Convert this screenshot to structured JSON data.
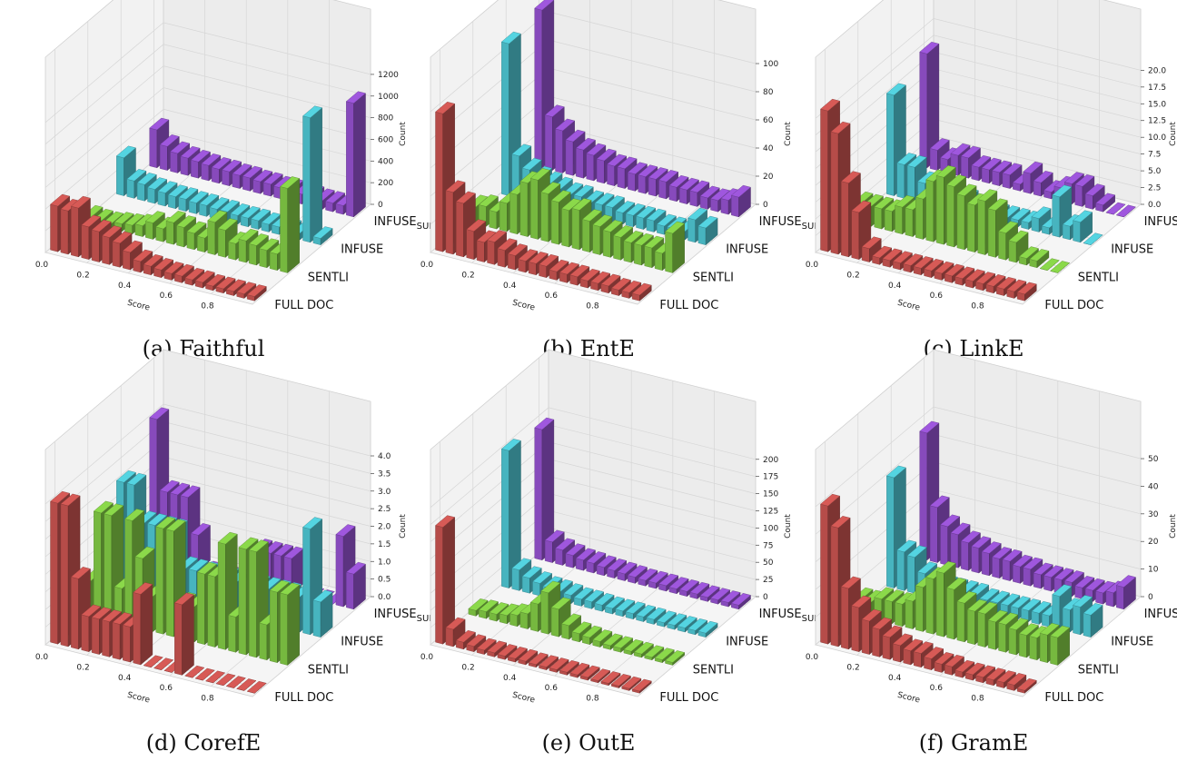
{
  "colors": {
    "full_doc": "#c0504d",
    "sentli": "#7cc242",
    "infuse": "#4bbdc9",
    "infuse_sub": "#8e4ec6",
    "grid": "#d6d6d6",
    "pane": "#f2f2f2"
  },
  "shared": {
    "xlabel": "Score",
    "zlabel": "Count",
    "x_ticks": [
      "0.0",
      "0.2",
      "0.4",
      "0.6",
      "0.8"
    ],
    "categories": [
      "FULL DOC",
      "SENTLI",
      "INFUSE",
      "INFUSE_SUB"
    ]
  },
  "chart_data": [
    {
      "type": "bar3d",
      "caption": "(a) Faithful",
      "zlim": [
        0,
        1300
      ],
      "z_ticks": [
        "0",
        "200",
        "400",
        "600",
        "800",
        "1000",
        "1200"
      ],
      "series": [
        {
          "name": "FULL DOC",
          "values": [
            420,
            400,
            450,
            300,
            280,
            250,
            220,
            160,
            100,
            80,
            70,
            60,
            60,
            50,
            50,
            40,
            40,
            40,
            40,
            40
          ]
        },
        {
          "name": "SENTLI",
          "values": [
            60,
            50,
            50,
            70,
            80,
            100,
            150,
            120,
            200,
            180,
            150,
            130,
            300,
            250,
            150,
            200,
            180,
            160,
            150,
            780
          ]
        },
        {
          "name": "INFUSE",
          "values": [
            350,
            160,
            150,
            130,
            120,
            110,
            110,
            100,
            100,
            90,
            90,
            80,
            80,
            80,
            70,
            70,
            60,
            60,
            1150,
            60
          ]
        },
        {
          "name": "INFUSE_SUB",
          "values": [
            350,
            220,
            180,
            160,
            150,
            140,
            130,
            130,
            120,
            120,
            110,
            110,
            100,
            100,
            90,
            90,
            80,
            80,
            80,
            1050
          ]
        }
      ]
    },
    {
      "type": "bar3d",
      "caption": "(b) EntE",
      "zlim": [
        0,
        100
      ],
      "z_ticks": [
        "0",
        "20",
        "40",
        "60",
        "80",
        "100"
      ],
      "series": [
        {
          "name": "FULL DOC",
          "values": [
            98,
            44,
            38,
            20,
            14,
            16,
            12,
            10,
            8,
            8,
            8,
            6,
            6,
            6,
            5,
            5,
            5,
            4,
            4,
            4
          ]
        },
        {
          "name": "SENTLI",
          "values": [
            12,
            14,
            12,
            20,
            28,
            38,
            42,
            34,
            30,
            26,
            28,
            22,
            20,
            18,
            16,
            14,
            14,
            14,
            12,
            28
          ]
        },
        {
          "name": "INFUSE",
          "values": [
            108,
            30,
            22,
            18,
            16,
            14,
            12,
            12,
            10,
            10,
            10,
            8,
            8,
            8,
            8,
            6,
            6,
            6,
            16,
            12
          ]
        },
        {
          "name": "INFUSE_SUB",
          "values": [
            112,
            38,
            30,
            24,
            20,
            18,
            16,
            14,
            14,
            12,
            12,
            12,
            12,
            10,
            10,
            10,
            8,
            8,
            10,
            14
          ]
        }
      ]
    },
    {
      "type": "bar3d",
      "caption": "(c) LinkE",
      "zlim": [
        0,
        21
      ],
      "z_ticks": [
        "0.0",
        "2.5",
        "5.0",
        "7.5",
        "10.0",
        "12.5",
        "15.0",
        "17.5",
        "20.0"
      ],
      "series": [
        {
          "name": "FULL DOC",
          "values": [
            21,
            18,
            11,
            7,
            2,
            1,
            1,
            1,
            1,
            1,
            1,
            1,
            1,
            1,
            1,
            1,
            1,
            1,
            1,
            1
          ]
        },
        {
          "name": "SENTLI",
          "values": [
            3,
            3,
            3,
            3,
            4,
            4,
            6,
            9,
            10,
            9,
            8,
            7,
            8,
            7,
            4,
            3,
            1,
            1,
            0,
            0
          ]
        },
        {
          "name": "INFUSE",
          "values": [
            15,
            5,
            5,
            3,
            2,
            2,
            2,
            2,
            1,
            1,
            1,
            1,
            1,
            1,
            2,
            1,
            6,
            2,
            3,
            0
          ]
        },
        {
          "name": "INFUSE_SUB",
          "values": [
            17,
            3,
            2,
            3,
            3,
            2,
            2,
            2,
            2,
            1,
            3,
            2,
            1,
            2,
            3,
            3,
            2,
            1,
            0,
            0
          ]
        }
      ]
    },
    {
      "type": "bar3d",
      "caption": "(d) CorefE",
      "zlim": [
        0,
        4
      ],
      "z_ticks": [
        "0.0",
        "0.5",
        "1.0",
        "1.5",
        "2.0",
        "2.5",
        "3.0",
        "3.5",
        "4.0"
      ],
      "series": [
        {
          "name": "FULL DOC",
          "values": [
            4,
            4,
            2,
            1,
            1,
            1,
            1,
            1,
            2,
            0,
            0,
            0,
            2,
            0,
            0,
            0,
            0,
            0,
            0,
            0
          ]
        },
        {
          "name": "SENTLI",
          "values": [
            1,
            3,
            3,
            1,
            3,
            2,
            1,
            3,
            3,
            1,
            1,
            2,
            2,
            3,
            1,
            3,
            3,
            1,
            2,
            2
          ]
        },
        {
          "name": "INFUSE",
          "values": [
            3,
            3,
            2,
            2,
            2,
            2,
            1,
            1,
            1,
            1,
            1,
            1,
            1,
            1,
            1,
            1,
            1,
            1,
            3,
            1
          ]
        },
        {
          "name": "INFUSE_SUB",
          "values": [
            4,
            2,
            2,
            2,
            1,
            0,
            0,
            0,
            0,
            0,
            1,
            1,
            1,
            1,
            0,
            0,
            0,
            0,
            2,
            1
          ]
        }
      ]
    },
    {
      "type": "bar3d",
      "caption": "(e) OutE",
      "zlim": [
        0,
        205
      ],
      "z_ticks": [
        "0",
        "25",
        "50",
        "75",
        "100",
        "125",
        "150",
        "175",
        "200"
      ],
      "series": [
        {
          "name": "FULL DOC",
          "values": [
            170,
            25,
            10,
            8,
            6,
            6,
            5,
            5,
            5,
            4,
            4,
            4,
            4,
            4,
            4,
            3,
            3,
            3,
            3,
            3
          ]
        },
        {
          "name": "SENTLI",
          "values": [
            8,
            10,
            10,
            12,
            16,
            22,
            40,
            60,
            40,
            20,
            12,
            10,
            8,
            6,
            6,
            5,
            5,
            4,
            4,
            4
          ]
        },
        {
          "name": "INFUSE",
          "values": [
            200,
            30,
            22,
            18,
            15,
            14,
            12,
            10,
            10,
            9,
            8,
            8,
            8,
            7,
            7,
            6,
            6,
            6,
            6,
            6
          ]
        },
        {
          "name": "INFUSE_SUB",
          "values": [
            190,
            30,
            22,
            18,
            15,
            14,
            12,
            11,
            10,
            9,
            8,
            8,
            8,
            7,
            7,
            7,
            6,
            6,
            6,
            6
          ]
        }
      ]
    },
    {
      "type": "bar3d",
      "caption": "(f) GramE",
      "zlim": [
        0,
        51
      ],
      "z_ticks": [
        "0",
        "10",
        "20",
        "30",
        "40",
        "50"
      ],
      "series": [
        {
          "name": "FULL DOC",
          "values": [
            50,
            43,
            22,
            16,
            12,
            10,
            8,
            6,
            5,
            5,
            4,
            3,
            3,
            2,
            2,
            2,
            2,
            2,
            2,
            1
          ]
        },
        {
          "name": "SENTLI",
          "values": [
            6,
            6,
            8,
            8,
            8,
            10,
            16,
            20,
            23,
            18,
            14,
            12,
            12,
            10,
            10,
            9,
            8,
            8,
            10,
            10
          ]
        },
        {
          "name": "INFUSE",
          "values": [
            40,
            14,
            13,
            8,
            6,
            5,
            5,
            5,
            5,
            4,
            4,
            4,
            4,
            4,
            4,
            4,
            12,
            8,
            10,
            8
          ]
        },
        {
          "name": "INFUSE_SUB",
          "values": [
            46,
            20,
            14,
            12,
            10,
            9,
            8,
            7,
            7,
            6,
            6,
            5,
            5,
            5,
            5,
            4,
            4,
            4,
            5,
            8
          ]
        }
      ]
    }
  ]
}
